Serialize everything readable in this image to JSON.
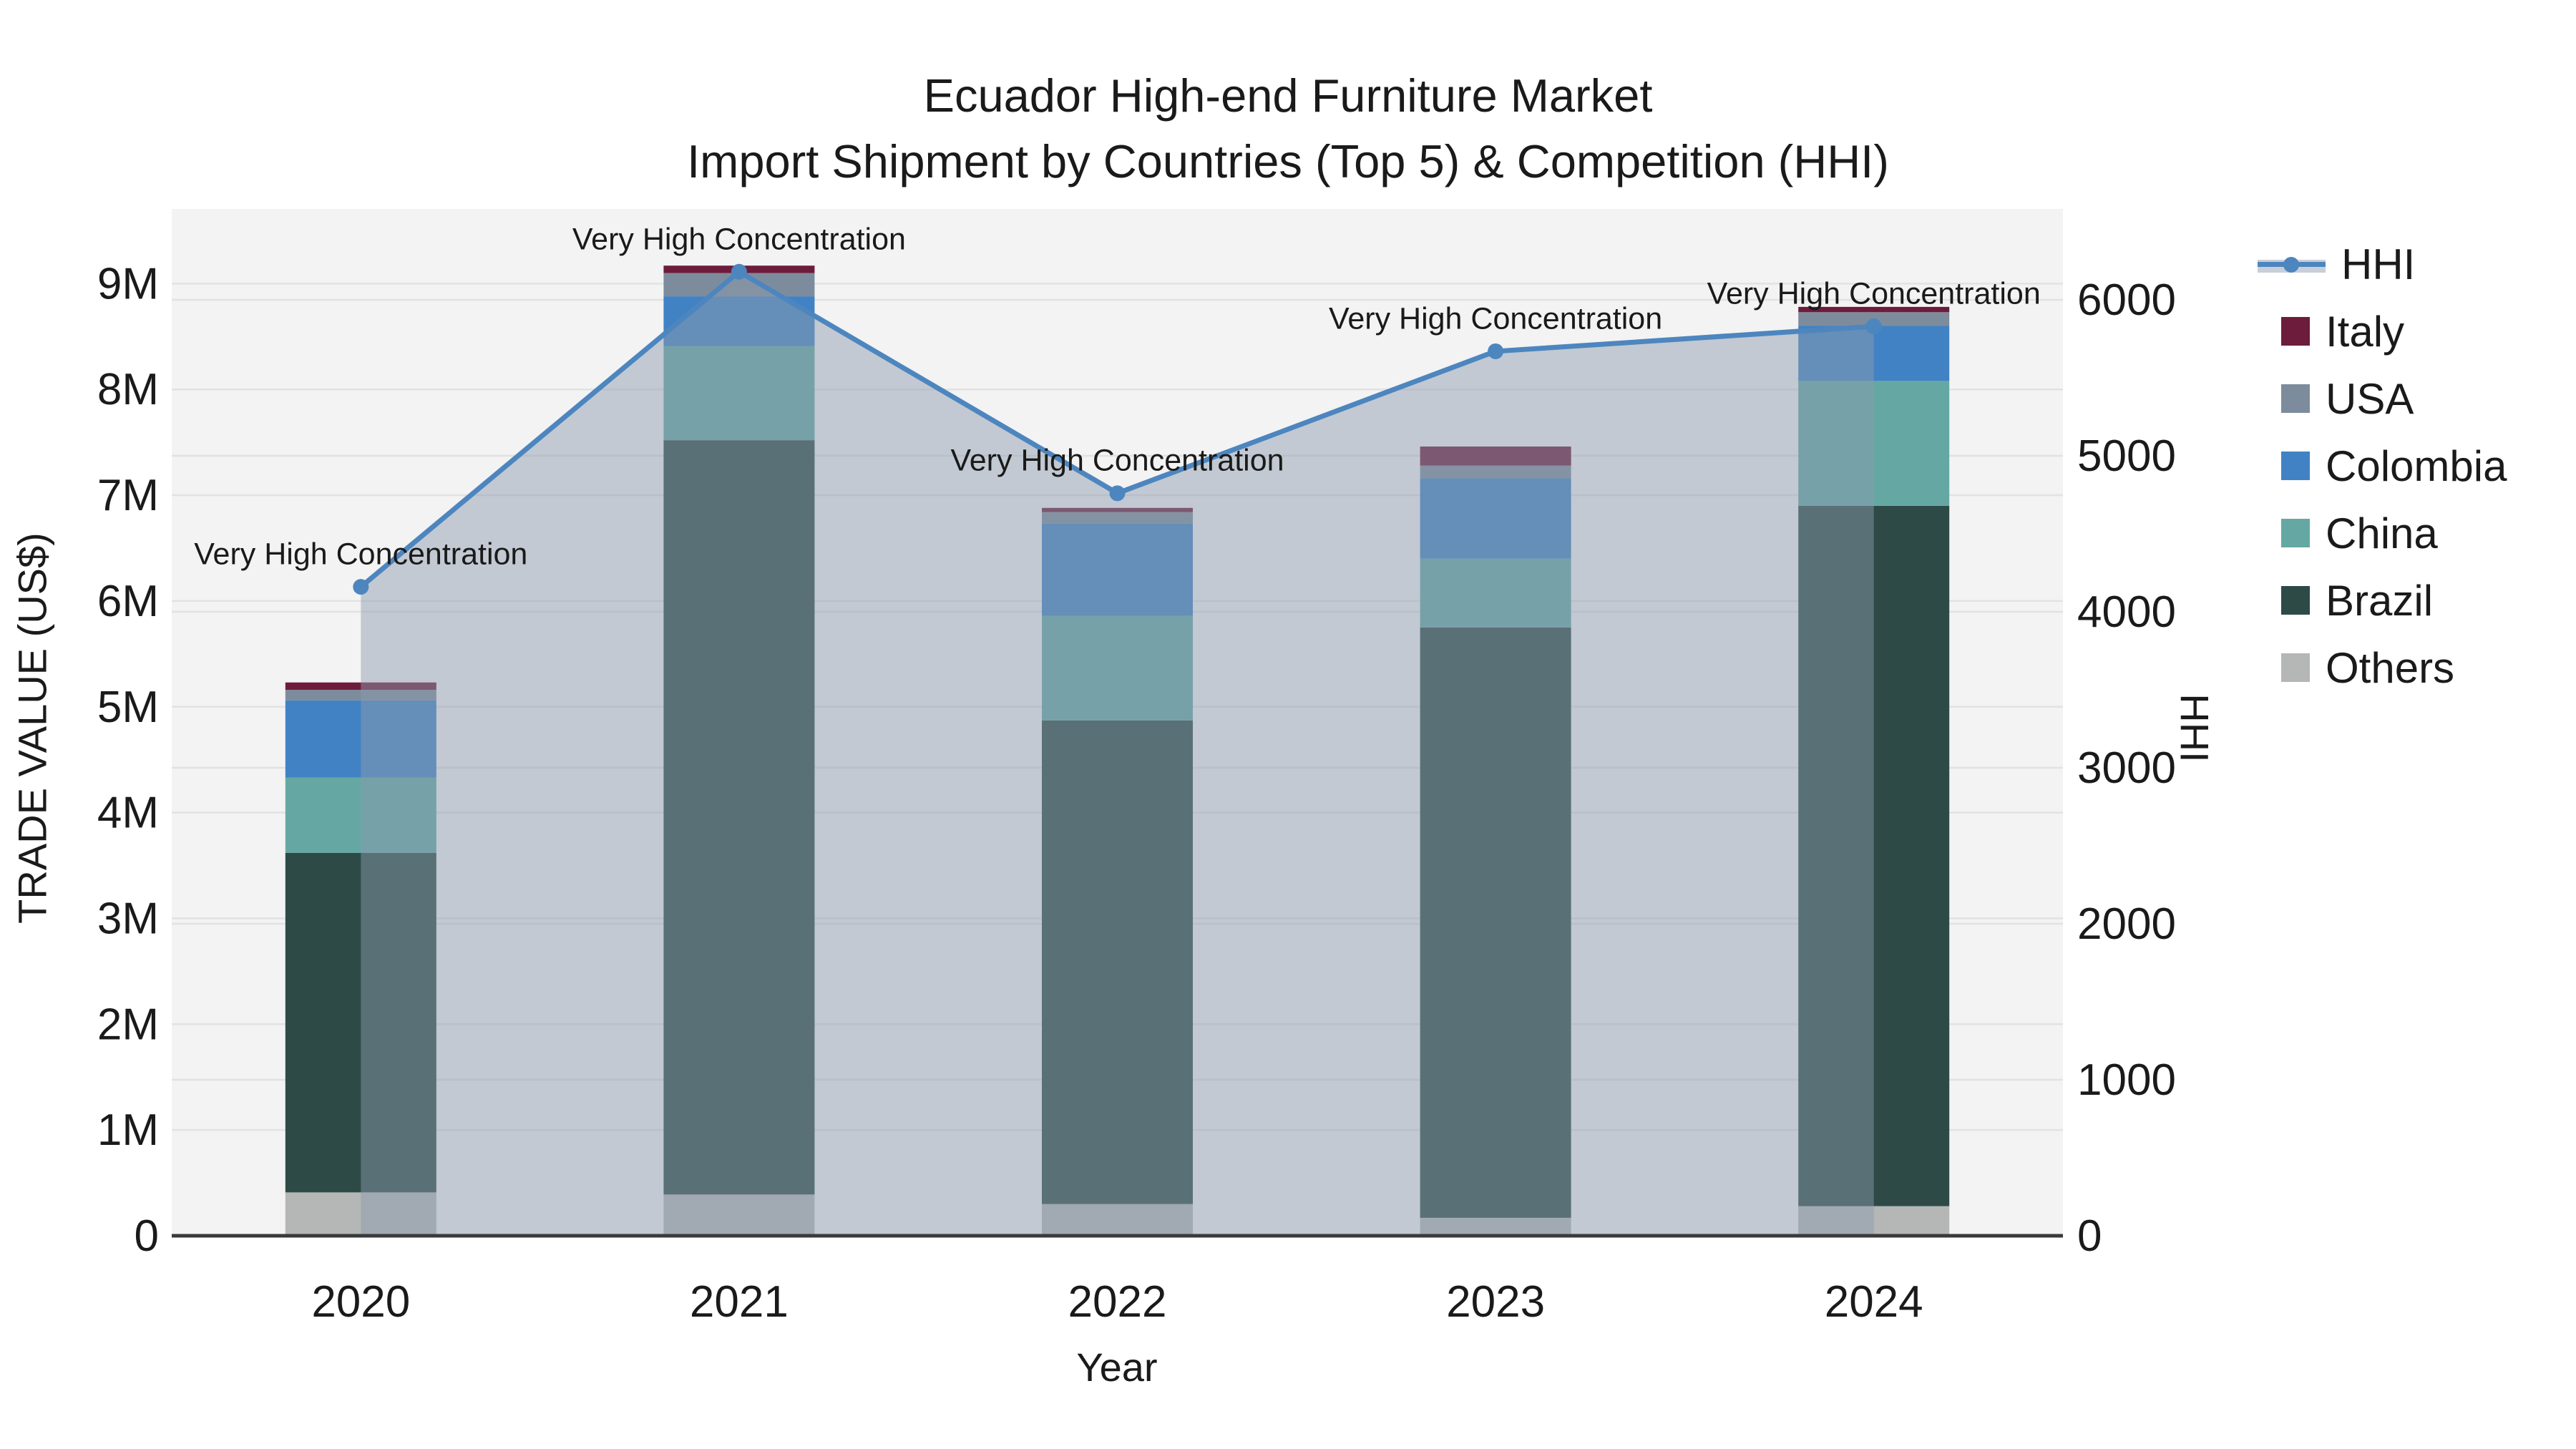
{
  "title": {
    "line1": "Ecuador High-end Furniture Market",
    "line2": "Import Shipment by Countries (Top 5) & Competition (HHI)"
  },
  "axes": {
    "left": {
      "label": "TRADE VALUE (US$)",
      "ticks": [
        "0",
        "1M",
        "2M",
        "3M",
        "4M",
        "5M",
        "6M",
        "7M",
        "8M",
        "9M"
      ]
    },
    "right": {
      "label": "HHI",
      "ticks": [
        "0",
        "1000",
        "2000",
        "3000",
        "4000",
        "5000",
        "6000"
      ]
    },
    "x": {
      "label": "Year",
      "ticks": [
        "2020",
        "2021",
        "2022",
        "2023",
        "2024"
      ]
    }
  },
  "annotation_text": "Very High Concentration",
  "colors": {
    "figure_bg": "#ffffff",
    "plot_bg": "#f3f3f3",
    "gridline": "#e2e2e2",
    "axis_spine": "#3a3a3a",
    "text": "#1a1a1a",
    "hhi_line": "#4d86bf",
    "area_fill": "rgba(141,154,173,0.48)",
    "italy": "#6d1c3c",
    "usa": "#7d8c9c",
    "colombia": "#4182c4",
    "china": "#65a8a3",
    "brazil": "#2d4a46",
    "others": "#b4b7b6"
  },
  "legend": [
    {
      "label": "HHI",
      "type": "line",
      "color": "#4d86bf"
    },
    {
      "label": "Italy",
      "type": "box",
      "color": "#6d1c3c"
    },
    {
      "label": "USA",
      "type": "box",
      "color": "#7d8c9c"
    },
    {
      "label": "Colombia",
      "type": "box",
      "color": "#4182c4"
    },
    {
      "label": "China",
      "type": "box",
      "color": "#65a8a3"
    },
    {
      "label": "Brazil",
      "type": "box",
      "color": "#2d4a46"
    },
    {
      "label": "Others",
      "type": "box",
      "color": "#b4b7b6"
    }
  ],
  "chart_data": {
    "type": "bar+line",
    "title": "Ecuador High-end Furniture Market — Import Shipment by Countries (Top 5) & Competition (HHI)",
    "xlabel": "Year",
    "ylabel_left": "TRADE VALUE (US$)",
    "ylabel_right": "HHI",
    "ylim_left": [
      0,
      9700000
    ],
    "ylim_right": [
      0,
      6580
    ],
    "grid": true,
    "legend_position": "right-outside",
    "categories": [
      "2020",
      "2021",
      "2022",
      "2023",
      "2024"
    ],
    "bar_stack_order_bottom_to_top": [
      "Others",
      "Brazil",
      "China",
      "Colombia",
      "USA",
      "Italy"
    ],
    "series": [
      {
        "name": "Others",
        "color": "#b4b7b6",
        "values": [
          410000,
          390000,
          300000,
          170000,
          280000
        ]
      },
      {
        "name": "Brazil",
        "color": "#2d4a46",
        "values": [
          3210000,
          7130000,
          4570000,
          5580000,
          6620000
        ]
      },
      {
        "name": "China",
        "color": "#65a8a3",
        "values": [
          710000,
          890000,
          990000,
          650000,
          1180000
        ]
      },
      {
        "name": "Colombia",
        "color": "#4182c4",
        "values": [
          730000,
          470000,
          870000,
          760000,
          520000
        ]
      },
      {
        "name": "USA",
        "color": "#7d8c9c",
        "values": [
          100000,
          220000,
          110000,
          120000,
          130000
        ]
      },
      {
        "name": "Italy",
        "color": "#6d1c3c",
        "values": [
          70000,
          70000,
          40000,
          180000,
          50000
        ]
      }
    ],
    "bar_totals": [
      5230000,
      9170000,
      6880000,
      7460000,
      8780000
    ],
    "line": {
      "name": "HHI",
      "color": "#4d86bf",
      "area_fill": true,
      "values": [
        4160,
        6180,
        4760,
        5670,
        5830
      ],
      "point_annotations": [
        "Very High Concentration",
        "Very High Concentration",
        "Very High Concentration",
        "Very High Concentration",
        "Very High Concentration"
      ]
    }
  }
}
